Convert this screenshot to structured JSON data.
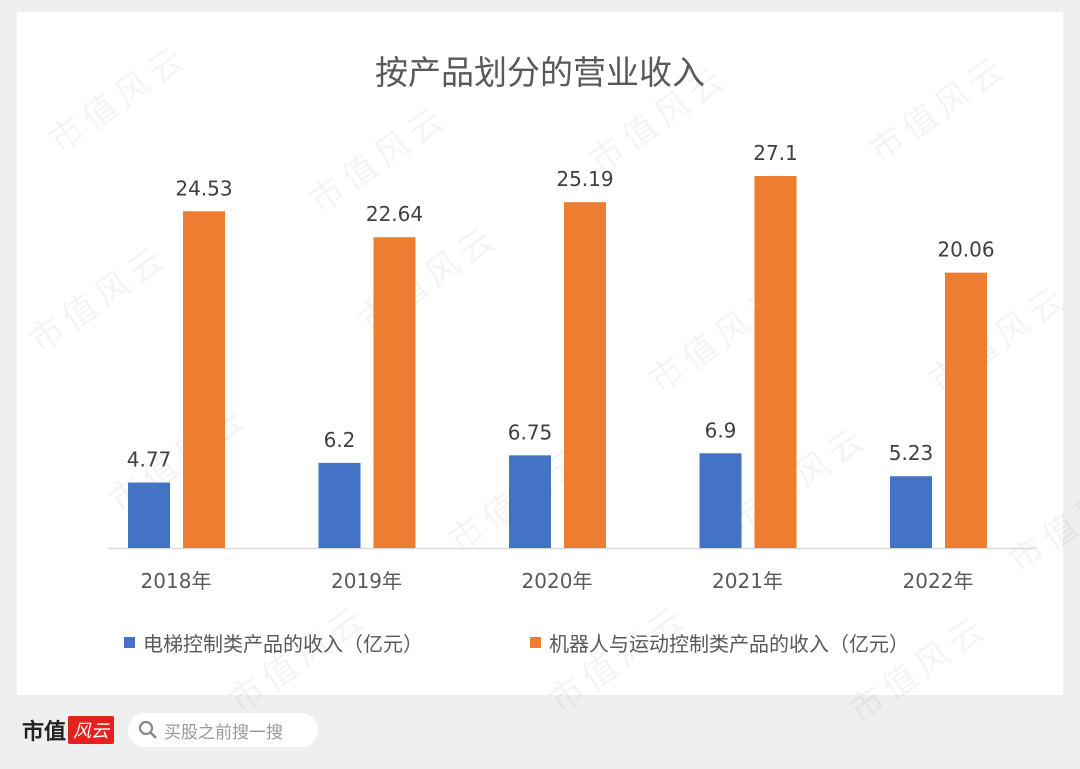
{
  "chart_data": {
    "type": "bar",
    "title": "按产品划分的营业收入",
    "categories": [
      "2018年",
      "2019年",
      "2020年",
      "2021年",
      "2022年"
    ],
    "series": [
      {
        "name": "电梯控制类产品的收入（亿元）",
        "color": "#4472c4",
        "values": [
          4.77,
          6.2,
          6.75,
          6.9,
          5.23
        ],
        "labels": [
          "4.77",
          "6.2",
          "6.75",
          "6.9",
          "5.23"
        ]
      },
      {
        "name": "机器人与运动控制类产品的收入（亿元）",
        "color": "#ed7d31",
        "values": [
          24.53,
          22.64,
          25.19,
          27.1,
          20.06
        ],
        "labels": [
          "24.53",
          "22.64",
          "25.19",
          "27.1",
          "20.06"
        ]
      }
    ],
    "legend": "bottom",
    "grid": false,
    "ylim": [
      0,
      27.1
    ]
  },
  "watermark": "市值风云",
  "footer": {
    "brand": "市值",
    "brand_logo": "风云",
    "search_placeholder": "买股之前搜一搜"
  }
}
